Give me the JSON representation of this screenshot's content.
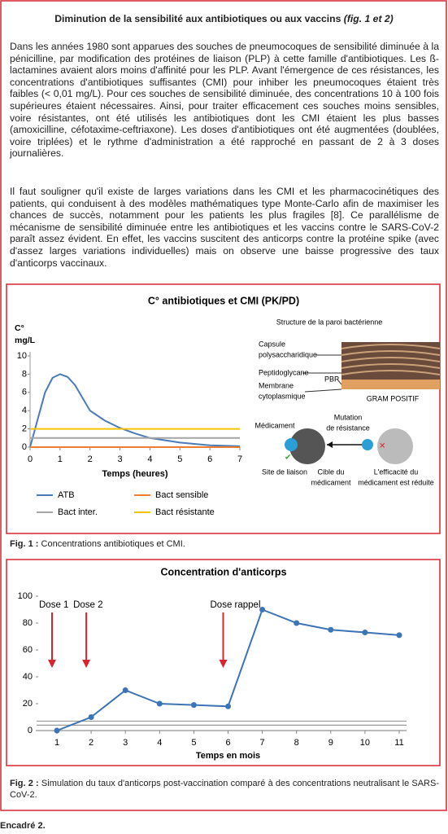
{
  "header": {
    "title": "Diminution de la sensibilité aux antibiotiques ou aux vaccins",
    "title_ref": "(fig. 1 et 2)"
  },
  "paragraphs": [
    "Dans les années 1980 sont apparues des souches de pneumocoques de sensibilité diminuée à la pénicilline, par modification des protéines de liaison (PLP) à cette famille d'antibiotiques. Les ß-lactamines avaient alors moins d'affinité pour les PLP. Avant l'émergence de ces résistances, les concentrations d'antibiotiques suffisantes (CMI) pour inhiber les pneumocoques étaient très faibles (< 0,01 mg/L). Pour ces souches de sensibilité diminuée, des concentrations 10 à 100 fois supérieures étaient nécessaires. Ainsi, pour traiter efficacement ces souches moins sensibles, voire résistantes, ont été utilisés les antibiotiques dont les CMI étaient les plus basses (amoxicilline, céfotaxime-ceftriaxone). Les doses d'antibiotiques ont été augmentées (doublées, voire triplées) et le rythme d'administration a été rapproché en passant de 2 à 3 doses journalières.",
    "Il faut souligner qu'il existe de larges variations dans les CMI et les pharmacocinétiques des patients, qui conduisent à des modèles mathématiques type Monte-Carlo afin de maximiser les chances de succès, notamment pour les patients les plus fragiles [8]. Ce parallélisme de mécanisme de sensibilité diminuée entre les antibiotiques et les vaccins contre le SARS-CoV-2 paraît assez évident. En effet, les vaccins suscitent des anticorps contre la protéine spike (avec d'assez larges variations individuelles) mais on observe une baisse progressive des taux d'anticorps vaccinaux."
  ],
  "chart_data": [
    {
      "type": "line",
      "title": "C° antibiotiques et CMI (PK/PD)",
      "ylabel": [
        "C°",
        "mg/L"
      ],
      "xlabel": "Temps (heures)",
      "xlim": [
        0,
        7
      ],
      "xticks": [
        0,
        1,
        2,
        3,
        4,
        5,
        6,
        7
      ],
      "ylim": [
        0,
        10
      ],
      "yticks": [
        0,
        2,
        4,
        6,
        8,
        10
      ],
      "series": [
        {
          "name": "ATB",
          "color": "#4a7ab8",
          "x": [
            0,
            0.25,
            0.5,
            0.75,
            1,
            1.25,
            1.5,
            2,
            2.5,
            3,
            3.5,
            4,
            5,
            6,
            7
          ],
          "values": [
            0,
            3,
            6,
            7.6,
            8,
            7.7,
            6.8,
            4,
            2.9,
            2.1,
            1.5,
            1,
            0.5,
            0.2,
            0.1
          ]
        },
        {
          "name": "Bact sensible",
          "color": "#ee7d31",
          "x": [
            0,
            7
          ],
          "values": [
            0,
            0
          ]
        },
        {
          "name": "Bact inter.",
          "color": "#a5a5a5",
          "x": [
            0,
            7
          ],
          "values": [
            1,
            1
          ]
        },
        {
          "name": "Bact résistante",
          "color": "#f5c400",
          "x": [
            0,
            7
          ],
          "values": [
            2,
            2
          ]
        }
      ]
    },
    {
      "type": "line",
      "title": "Concentration d'anticorps",
      "xlabel": "Temps en mois",
      "x": [
        1,
        2,
        3,
        4,
        5,
        6,
        7,
        8,
        9,
        10,
        11
      ],
      "xlim": [
        1,
        11
      ],
      "xticks": [
        1,
        2,
        3,
        4,
        5,
        6,
        7,
        8,
        9,
        10,
        11
      ],
      "ylim": [
        0,
        100
      ],
      "yticks": [
        0,
        20,
        40,
        60,
        80,
        100
      ],
      "series": [
        {
          "color": "#3d74b5",
          "values": [
            0,
            10,
            30,
            20,
            19,
            18,
            90,
            80,
            75,
            73,
            71
          ]
        }
      ],
      "hlines": [
        4,
        7
      ],
      "annotations": [
        {
          "text": "Dose 1",
          "x": 1
        },
        {
          "text": "Dose 2",
          "x": 2
        },
        {
          "text": "Dose rappel",
          "x": 6
        }
      ]
    }
  ],
  "figure1_diagram": {
    "title": "Structure de la paroi bactérienne",
    "labels": [
      [
        "Capsule",
        "polysaccharidique"
      ],
      [
        "Peptidoglycane"
      ],
      [
        "Membrane",
        "cytoplasmique"
      ],
      [
        "PBP"
      ],
      [
        "GRAM POSITIF"
      ],
      [
        "Médicament"
      ],
      [
        "Mutation",
        "de résistance"
      ],
      [
        "Site de liaison"
      ],
      [
        "Cible du",
        "médicament"
      ],
      [
        "L'efficacité du",
        "médicament est réduite"
      ]
    ]
  },
  "fig1_caption": {
    "label": "Fig. 1 :",
    "text": "Concentrations antibiotiques et CMI."
  },
  "fig2_caption": {
    "label": "Fig. 2 :",
    "text": "Simulation du taux d'anticorps post-vaccination comparé à des concentrations neutralisant le SARS-CoV-2."
  },
  "footer": "Encadré 2."
}
